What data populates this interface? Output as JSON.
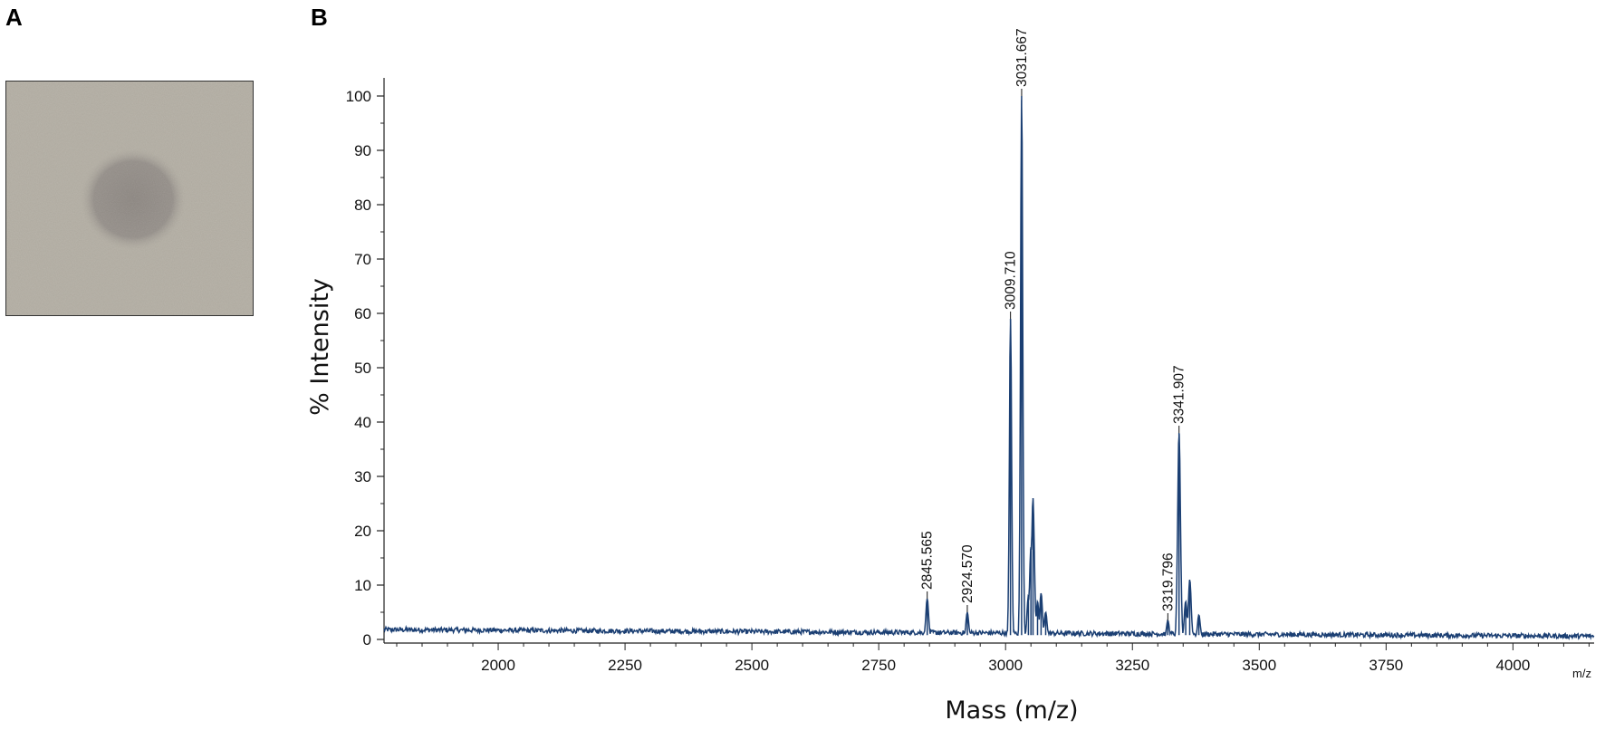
{
  "panels": {
    "a_label": "A",
    "b_label": "B"
  },
  "photo": {
    "background_color": "#b3aea3",
    "spot_color": "#8a847f"
  },
  "chart_data": {
    "type": "line",
    "title": "",
    "xlabel": "Mass (m/z)",
    "ylabel": "% Intensity",
    "x_unit": "m/z",
    "xlim": [
      1775,
      4160
    ],
    "ylim": [
      0,
      100
    ],
    "xticks": [
      2000,
      2250,
      2500,
      2750,
      3000,
      3250,
      3500,
      3750,
      4000
    ],
    "yticks": [
      0,
      10,
      20,
      30,
      40,
      50,
      60,
      70,
      80,
      90,
      100
    ],
    "series_color": "#1b3f73",
    "grid": false,
    "legend": "none",
    "baseline": {
      "from_x": 1775,
      "to_x": 4160,
      "level_start": 1.8,
      "level_end": 0.6
    },
    "peaks": [
      {
        "x": 2845.565,
        "y": 7.5,
        "label": "2845.565",
        "labeled": true
      },
      {
        "x": 2924.57,
        "y": 5.0,
        "label": "2924.570",
        "labeled": true
      },
      {
        "x": 3009.71,
        "y": 59,
        "label": "3009.710",
        "labeled": true
      },
      {
        "x": 3031.667,
        "y": 100,
        "label": "3031.667",
        "labeled": true
      },
      {
        "x": 3045,
        "y": 8,
        "labeled": false
      },
      {
        "x": 3050,
        "y": 17,
        "labeled": false
      },
      {
        "x": 3054,
        "y": 26,
        "labeled": false
      },
      {
        "x": 3063,
        "y": 7,
        "labeled": false
      },
      {
        "x": 3070,
        "y": 8.5,
        "labeled": false
      },
      {
        "x": 3079,
        "y": 5,
        "labeled": false
      },
      {
        "x": 3319.796,
        "y": 3.5,
        "label": "3319.796",
        "labeled": true
      },
      {
        "x": 3341.907,
        "y": 38,
        "label": "3341.907",
        "labeled": true
      },
      {
        "x": 3355,
        "y": 7,
        "labeled": false
      },
      {
        "x": 3363,
        "y": 11,
        "labeled": false
      },
      {
        "x": 3381,
        "y": 4.5,
        "labeled": false
      }
    ]
  }
}
